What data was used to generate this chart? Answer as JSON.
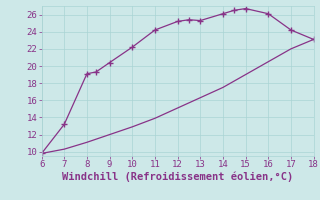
{
  "xlabel": "Windchill (Refroidissement éolien,°C)",
  "background_color": "#cde8e8",
  "line_color": "#883388",
  "marker": "+",
  "upper_x": [
    6,
    7,
    8,
    8.4,
    9,
    10,
    11,
    12,
    12.5,
    13,
    14,
    14.5,
    15,
    16,
    17,
    18
  ],
  "upper_y": [
    9.8,
    13.2,
    19.1,
    19.3,
    20.4,
    22.2,
    24.2,
    25.2,
    25.4,
    25.3,
    26.1,
    26.5,
    26.7,
    26.1,
    24.2,
    23.1
  ],
  "lower_x": [
    6,
    7,
    8,
    9,
    10,
    11,
    12,
    13,
    14,
    15,
    16,
    17,
    18
  ],
  "lower_y": [
    9.8,
    10.3,
    11.1,
    12.0,
    12.9,
    13.9,
    15.1,
    16.3,
    17.5,
    19.0,
    20.5,
    22.0,
    23.1
  ],
  "xlim": [
    6,
    18
  ],
  "ylim": [
    9.5,
    27
  ],
  "xticks": [
    6,
    7,
    8,
    9,
    10,
    11,
    12,
    13,
    14,
    15,
    16,
    17,
    18
  ],
  "yticks": [
    10,
    12,
    14,
    16,
    18,
    20,
    22,
    24,
    26
  ],
  "grid_color": "#aad4d4",
  "tick_fontsize": 6.5,
  "xlabel_fontsize": 7.5
}
